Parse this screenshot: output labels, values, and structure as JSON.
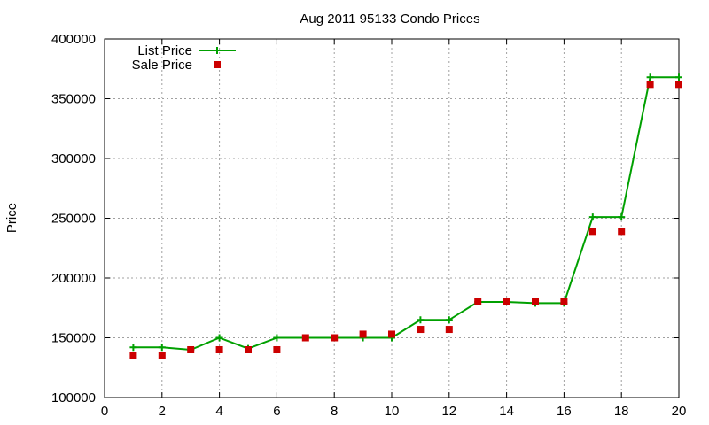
{
  "chart_data": {
    "type": "line",
    "title": "Aug 2011 95133 Condo Prices",
    "xlabel": "",
    "ylabel": "Price",
    "xlim": [
      0,
      20
    ],
    "ylim": [
      100000,
      400000
    ],
    "x_ticks": [
      0,
      2,
      4,
      6,
      8,
      10,
      12,
      14,
      16,
      18,
      20
    ],
    "y_ticks": [
      100000,
      150000,
      200000,
      250000,
      300000,
      350000,
      400000
    ],
    "grid": true,
    "legend_position": "top-left",
    "x": [
      1,
      2,
      3,
      4,
      5,
      6,
      7,
      8,
      9,
      10,
      11,
      12,
      13,
      14,
      15,
      16,
      17,
      18,
      19,
      20
    ],
    "series": [
      {
        "name": "List Price",
        "style": "line-with-plus-markers",
        "color": "#00a000",
        "values": [
          142000,
          142000,
          140000,
          150000,
          141000,
          150000,
          150000,
          150000,
          150000,
          150000,
          165000,
          165000,
          180000,
          180000,
          179000,
          179000,
          251000,
          251000,
          368000,
          368000
        ]
      },
      {
        "name": "Sale Price",
        "style": "square-points",
        "color": "#cc0000",
        "values": [
          135000,
          135000,
          140000,
          140000,
          140000,
          140000,
          150000,
          150000,
          153000,
          153000,
          157000,
          157000,
          180000,
          180000,
          180000,
          180000,
          239000,
          239000,
          362000,
          362000
        ]
      }
    ]
  }
}
